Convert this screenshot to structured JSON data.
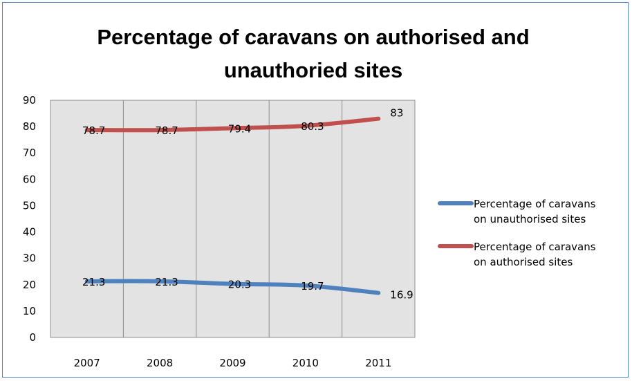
{
  "chart_data": {
    "type": "line",
    "title_lines": [
      "Percentage of caravans on authorised and",
      "unauthoried sites"
    ],
    "xlabel": "",
    "ylabel": "",
    "categories": [
      "2007",
      "2008",
      "2009",
      "2010",
      "2011"
    ],
    "ylim": [
      0,
      90
    ],
    "yticks": [
      "0",
      "10",
      "20",
      "30",
      "40",
      "50",
      "60",
      "70",
      "80",
      "90"
    ],
    "grid": "vertical",
    "legend_position": "right",
    "series": [
      {
        "name_lines": [
          "Percentage of caravans",
          "on unauthorised sites"
        ],
        "values": [
          21.3,
          21.3,
          20.3,
          19.7,
          16.9
        ],
        "labels": [
          "21.3",
          "21.3",
          "20.3",
          "19.7",
          "16.9"
        ],
        "color": "#4f81bd"
      },
      {
        "name_lines": [
          "Percentage of caravans",
          "on authorised sites"
        ],
        "values": [
          78.7,
          78.7,
          79.4,
          80.3,
          83
        ],
        "labels": [
          "78.7",
          "78.7",
          "79.4",
          "80.3",
          "83"
        ],
        "color": "#c0504d"
      }
    ],
    "plot_background": "#e3e3e3",
    "gridline_color": "#8c8c8c"
  }
}
